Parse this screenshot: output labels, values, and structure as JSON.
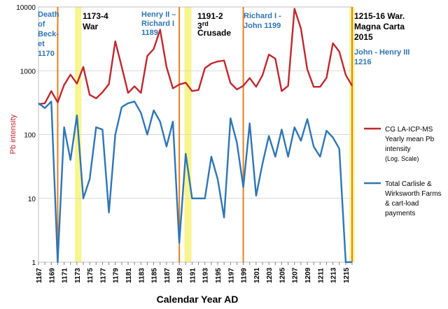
{
  "chart_data": {
    "type": "line",
    "x_start": 1167,
    "x_end": 1216,
    "x_ticks": [
      "1167",
      "1169",
      "1171",
      "1173",
      "1175",
      "1177",
      "1179",
      "1181",
      "1183",
      "1185",
      "1187",
      "1189",
      "1191",
      "1193",
      "1195",
      "1197",
      "1199",
      "1201",
      "1203",
      "1205",
      "1207",
      "1209",
      "1211",
      "1213",
      "1215"
    ],
    "xlabel": "Calendar Year AD",
    "ylabel": "Pb intensity",
    "yscale": "log",
    "ylim": [
      1,
      10000
    ],
    "y_ticks": [
      "1",
      "10",
      "100",
      "1000",
      "10000"
    ],
    "series": [
      {
        "name_lines": [
          "CG LA-ICP-MS",
          "Yearly mean Pb",
          "intensity",
          "(Log. Scale)"
        ],
        "color": "#c0272d",
        "values": [
          300,
          310,
          480,
          320,
          600,
          870,
          630,
          1150,
          420,
          370,
          460,
          620,
          2900,
          1150,
          450,
          570,
          450,
          1700,
          2200,
          4400,
          1150,
          530,
          610,
          650,
          480,
          500,
          1100,
          1300,
          1400,
          1450,
          640,
          510,
          580,
          770,
          560,
          850,
          1800,
          1550,
          480,
          580,
          9400,
          4600,
          1050,
          560,
          560,
          770,
          2700,
          2000,
          860,
          580
        ]
      },
      {
        "name_lines": [
          "Total Carlisle &",
          "Wirksworth Farms",
          "& cart-load",
          "payments"
        ],
        "color": "#2e75b6",
        "values": [
          310,
          260,
          330,
          1,
          130,
          40,
          200,
          10,
          20,
          130,
          120,
          6,
          100,
          270,
          310,
          330,
          220,
          100,
          240,
          160,
          65,
          160,
          2,
          50,
          10,
          10,
          10,
          45,
          20,
          5,
          180,
          75,
          15,
          150,
          11,
          35,
          95,
          45,
          120,
          45,
          130,
          80,
          175,
          65,
          45,
          115,
          90,
          60,
          1,
          1
        ]
      }
    ],
    "event_lines": [
      {
        "year": 1170,
        "color": "#e87e1c"
      },
      {
        "year": 1189,
        "color": "#e87e1c"
      },
      {
        "year": 1199,
        "color": "#e87e1c"
      },
      {
        "year": 1216,
        "color": "#e87e1c"
      }
    ],
    "highlight_bands": [
      {
        "from": 1172.7,
        "to": 1173.7,
        "color": "#f7f27a"
      },
      {
        "from": 1189.8,
        "to": 1190.9,
        "color": "#f7f27a"
      },
      {
        "from": 1215.6,
        "to": 1216.4,
        "color": "#f7f27a"
      }
    ],
    "annotations": [
      {
        "lines": [
          "Death",
          "of",
          "Beck-",
          "et",
          "1170"
        ],
        "color": "#2e75b6",
        "bold": true
      },
      {
        "lines": [
          "1173-4",
          "War"
        ],
        "color": "#000000",
        "bold": true
      },
      {
        "lines": [
          "Henry II –",
          "Richard I",
          "1189"
        ],
        "color": "#2e75b6",
        "bold": true
      },
      {
        "lines": [
          "1191-2",
          "3",
          "Crusade"
        ],
        "sup": "rd",
        "color": "#000000",
        "bold": true
      },
      {
        "lines": [
          "Richard I -",
          "John 1199"
        ],
        "color": "#2e75b6",
        "bold": true
      },
      {
        "lines": [
          "1215-16 War.",
          "Magna Carta",
          "2015"
        ],
        "color": "#000000",
        "bold": true
      },
      {
        "lines": [
          "John - Henry III",
          "1216"
        ],
        "color": "#2e75b6",
        "bold": true
      }
    ]
  }
}
